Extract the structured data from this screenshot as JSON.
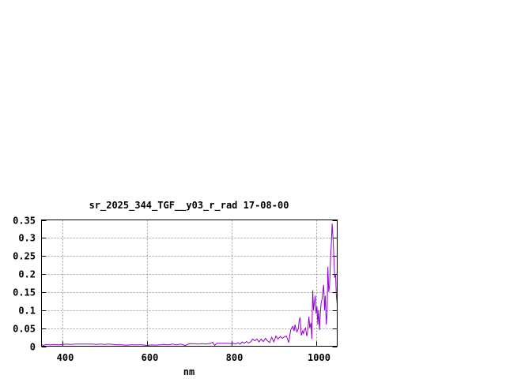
{
  "chart_data": {
    "type": "line",
    "title": "sr_2025_344_TGF__y03_r_rad 17-08-00",
    "xlabel": "nm",
    "ylabel": "",
    "xlim": [
      350,
      1050
    ],
    "ylim": [
      0,
      0.35
    ],
    "grid": true,
    "xticks": [
      400,
      600,
      800,
      1000
    ],
    "xtick_labels": [
      "400",
      "600",
      "800",
      "1000"
    ],
    "yticks": [
      0,
      0.05,
      0.1,
      0.15,
      0.2,
      0.25,
      0.3,
      0.35
    ],
    "ytick_labels": [
      "0",
      "0.05",
      "0.1",
      "0.15",
      "0.2",
      "0.25",
      "0.3",
      "0.35"
    ],
    "line_color": "#9400d3",
    "series": [
      {
        "x": [
          350,
          355,
          360,
          370,
          380,
          390,
          400,
          410,
          420,
          430,
          440,
          450,
          460,
          470,
          480,
          490,
          500,
          510,
          520,
          530,
          540,
          550,
          560,
          570,
          580,
          590,
          600,
          610,
          620,
          630,
          640,
          650,
          660,
          670,
          680,
          690,
          700,
          710,
          720,
          730,
          740,
          750,
          755,
          760,
          765,
          770,
          780,
          790,
          800,
          805,
          810,
          815,
          820,
          825,
          830,
          835,
          840,
          845,
          850,
          855,
          860,
          865,
          870,
          875,
          880,
          885,
          890,
          895,
          900,
          905,
          910,
          915,
          920,
          925,
          930,
          935,
          940,
          942,
          945,
          948,
          950,
          953,
          955,
          958,
          960,
          962,
          965,
          968,
          970,
          972,
          975,
          978,
          980,
          983,
          985,
          988,
          990,
          992,
          994,
          996,
          998,
          1000,
          1002,
          1004,
          1006,
          1008,
          1010,
          1012,
          1014,
          1016,
          1018,
          1020,
          1022,
          1024,
          1026,
          1028,
          1030,
          1032,
          1034,
          1036,
          1038,
          1040,
          1042,
          1044,
          1046,
          1048,
          1050
        ],
        "y": [
          0.005,
          0.002,
          0.005,
          0.004,
          0.005,
          0.004,
          0.005,
          0.006,
          0.005,
          0.006,
          0.006,
          0.006,
          0.006,
          0.006,
          0.005,
          0.006,
          0.005,
          0.006,
          0.005,
          0.004,
          0.004,
          0.003,
          0.004,
          0.004,
          0.004,
          0.004,
          0.002,
          0.004,
          0.003,
          0.004,
          0.005,
          0.004,
          0.006,
          0.004,
          0.006,
          0.002,
          0.007,
          0.007,
          0.006,
          0.007,
          0.006,
          0.008,
          0.011,
          0.002,
          0.008,
          0.008,
          0.008,
          0.008,
          0.007,
          0.008,
          0.006,
          0.01,
          0.006,
          0.012,
          0.008,
          0.013,
          0.009,
          0.012,
          0.02,
          0.015,
          0.02,
          0.012,
          0.02,
          0.013,
          0.022,
          0.015,
          0.01,
          0.025,
          0.012,
          0.028,
          0.02,
          0.027,
          0.022,
          0.026,
          0.028,
          0.01,
          0.045,
          0.05,
          0.055,
          0.042,
          0.06,
          0.045,
          0.04,
          0.05,
          0.07,
          0.08,
          0.03,
          0.042,
          0.035,
          0.045,
          0.05,
          0.028,
          0.04,
          0.082,
          0.05,
          0.065,
          0.02,
          0.155,
          0.1,
          0.12,
          0.14,
          0.09,
          0.11,
          0.06,
          0.1,
          0.045,
          0.09,
          0.12,
          0.13,
          0.15,
          0.17,
          0.1,
          0.14,
          0.06,
          0.09,
          0.22,
          0.15,
          0.17,
          0.24,
          0.28,
          0.34,
          0.3,
          0.25,
          0.19,
          0.2,
          0.14,
          0.115
        ]
      }
    ]
  }
}
